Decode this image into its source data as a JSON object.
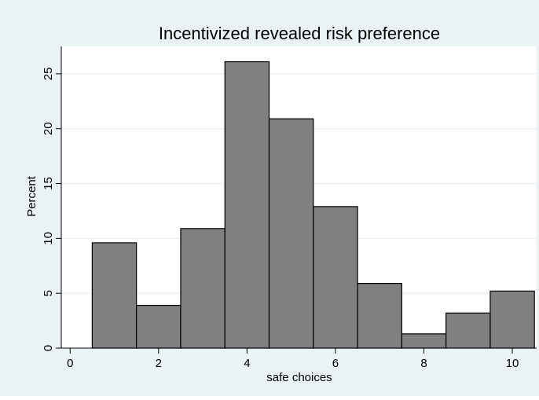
{
  "chart_data": {
    "type": "bar",
    "title": "Incentivized revealed risk preference",
    "xlabel": "safe choices",
    "ylabel": "Percent",
    "x": [
      1,
      2,
      3,
      4,
      5,
      6,
      7,
      8,
      9,
      10
    ],
    "values": [
      9.6,
      3.9,
      10.9,
      26.1,
      20.9,
      12.9,
      5.9,
      1.3,
      3.2,
      5.2
    ],
    "bin_width": 1,
    "xlim": [
      -0.2,
      10.55
    ],
    "ylim": [
      0,
      27.5
    ],
    "xticks": [
      0,
      2,
      4,
      6,
      8,
      10
    ],
    "xtick_labels": [
      "0",
      "2",
      "4",
      "6",
      "8",
      "10"
    ],
    "yticks": [
      0,
      5,
      10,
      15,
      20,
      25
    ],
    "ytick_labels": [
      "0",
      "5",
      "10",
      "15",
      "20",
      "25"
    ],
    "grid": true,
    "bar_color": "#808080",
    "bar_edge_color": "#000000",
    "plot_background": "#ffffff",
    "figure_background": "#eaf2f3",
    "grid_color": "#eaf2f3"
  }
}
